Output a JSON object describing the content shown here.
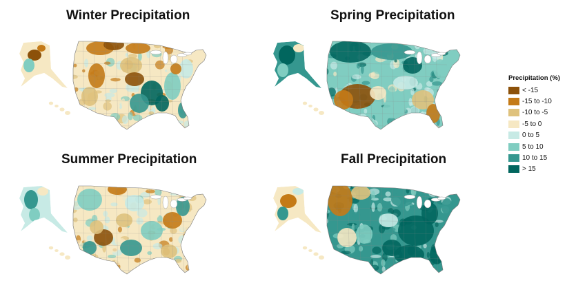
{
  "panels": [
    {
      "title": "Winter Precipitation"
    },
    {
      "title": "Spring Precipitation"
    },
    {
      "title": "Summer Precipitation"
    },
    {
      "title": "Fall Precipitation"
    }
  ],
  "legend": {
    "title": "Precipitation (%)",
    "items": [
      {
        "label": "< -15",
        "color": "#8c510a"
      },
      {
        "label": "-15 to -10",
        "color": "#c47a17"
      },
      {
        "label": "-10 to -5",
        "color": "#dfc27d"
      },
      {
        "label": "-5 to 0",
        "color": "#f6e8c3"
      },
      {
        "label": "0 to 5",
        "color": "#c7eae5"
      },
      {
        "label": "5 to 10",
        "color": "#80cdc1"
      },
      {
        "label": "10 to 15",
        "color": "#35978f"
      },
      {
        "label": "> 15",
        "color": "#01665e"
      }
    ]
  }
}
